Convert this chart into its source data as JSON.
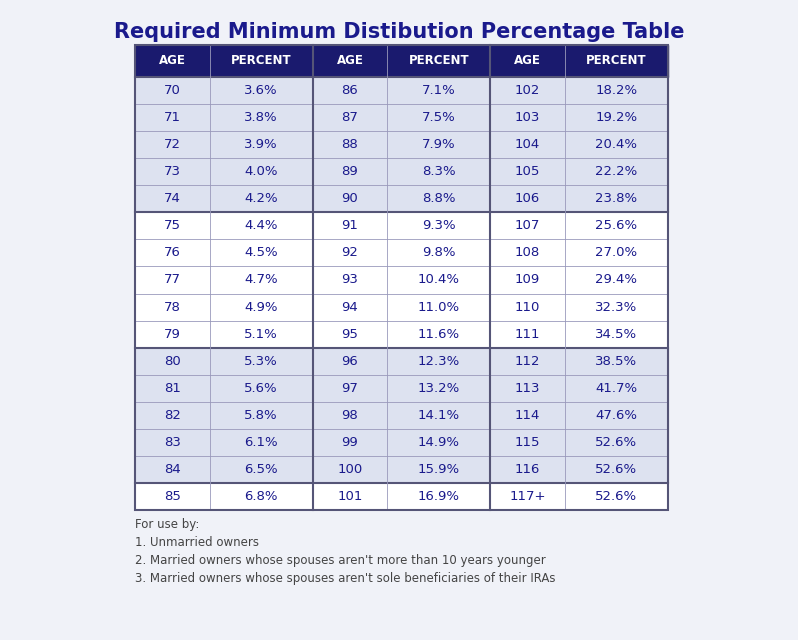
{
  "title": "Required Minimum Distibution Percentage Table",
  "title_color": "#1a1a8c",
  "title_fontsize": 15,
  "header_bg": "#1a1a6e",
  "header_text_color": "#ffffff",
  "header_labels": [
    "AGE",
    "PERCENT",
    "AGE",
    "PERCENT",
    "AGE",
    "PERCENT"
  ],
  "row_bg_light": "#dde2f0",
  "row_bg_white": "#ffffff",
  "cell_text_color": "#1a1a8c",
  "col1_ages": [
    "70",
    "71",
    "72",
    "73",
    "74",
    "75",
    "76",
    "77",
    "78",
    "79",
    "80",
    "81",
    "82",
    "83",
    "84",
    "85"
  ],
  "col1_pcts": [
    "3.6%",
    "3.8%",
    "3.9%",
    "4.0%",
    "4.2%",
    "4.4%",
    "4.5%",
    "4.7%",
    "4.9%",
    "5.1%",
    "5.3%",
    "5.6%",
    "5.8%",
    "6.1%",
    "6.5%",
    "6.8%"
  ],
  "col2_ages": [
    "86",
    "87",
    "88",
    "89",
    "90",
    "91",
    "92",
    "93",
    "94",
    "95",
    "96",
    "97",
    "98",
    "99",
    "100",
    "101"
  ],
  "col2_pcts": [
    "7.1%",
    "7.5%",
    "7.9%",
    "8.3%",
    "8.8%",
    "9.3%",
    "9.8%",
    "10.4%",
    "11.0%",
    "11.6%",
    "12.3%",
    "13.2%",
    "14.1%",
    "14.9%",
    "15.9%",
    "16.9%"
  ],
  "col3_ages": [
    "102",
    "103",
    "104",
    "105",
    "106",
    "107",
    "108",
    "109",
    "110",
    "111",
    "112",
    "113",
    "114",
    "115",
    "116",
    "117+"
  ],
  "col3_pcts": [
    "18.2%",
    "19.2%",
    "20.4%",
    "22.2%",
    "23.8%",
    "25.6%",
    "27.0%",
    "29.4%",
    "32.3%",
    "34.5%",
    "38.5%",
    "41.7%",
    "47.6%",
    "52.6%",
    "52.6%",
    "52.6%"
  ],
  "footnote_lines": [
    "For use by:",
    "1. Unmarried owners",
    "2. Married owners whose spouses aren't more than 10 years younger",
    "3. Married owners whose spouses aren't sole beneficiaries of their IRAs"
  ],
  "footnote_color": "#444444",
  "footnote_fontsize": 8.5,
  "background_color": "#f0f2f8",
  "border_color": "#666688",
  "thick_border_color": "#555577",
  "group_divider_color": "#555577"
}
